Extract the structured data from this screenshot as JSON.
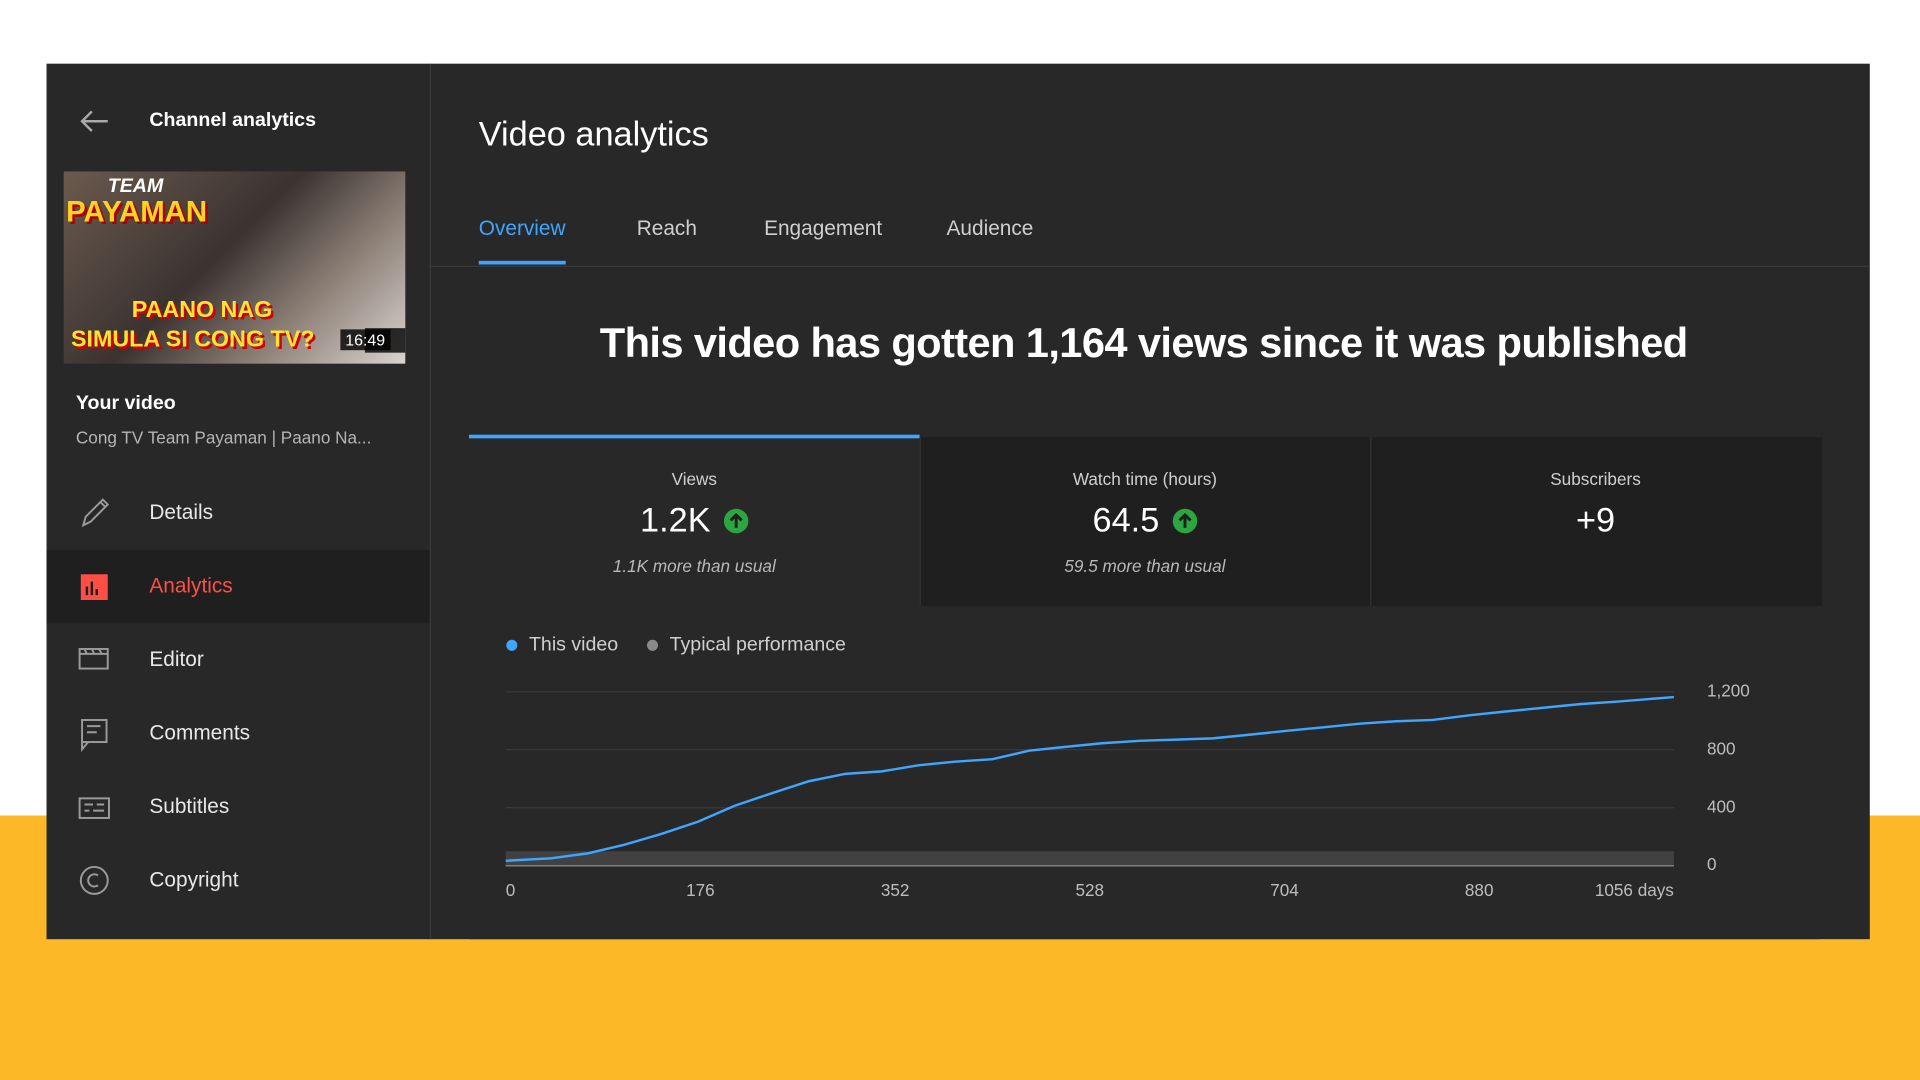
{
  "sidebar": {
    "back_label": "Channel analytics",
    "thumbnail": {
      "brand_top": "TEAM",
      "brand": "PAYAMAN",
      "line1": "PAANO NAG",
      "line2": "SIMULA SI CONG TV?",
      "duration": "16:49"
    },
    "your_video": "Your video",
    "video_title": "Cong TV Team Payaman | Paano Na...",
    "nav": [
      {
        "label": "Details",
        "active": false
      },
      {
        "label": "Analytics",
        "active": true
      },
      {
        "label": "Editor",
        "active": false
      },
      {
        "label": "Comments",
        "active": false
      },
      {
        "label": "Subtitles",
        "active": false
      },
      {
        "label": "Copyright",
        "active": false
      }
    ]
  },
  "header": {
    "title": "Video analytics",
    "tabs": [
      {
        "label": "Overview",
        "active": true
      },
      {
        "label": "Reach",
        "active": false
      },
      {
        "label": "Engagement",
        "active": false
      },
      {
        "label": "Audience",
        "active": false
      }
    ]
  },
  "headline": "This video has gotten 1,164 views since it was published",
  "cards": [
    {
      "label": "Views",
      "value": "1.2K",
      "note": "1.1K more than usual",
      "active": true,
      "trend_up": true
    },
    {
      "label": "Watch time (hours)",
      "value": "64.5",
      "note": "59.5 more than usual",
      "active": false,
      "trend_up": true
    },
    {
      "label": "Subscribers",
      "value": "+9",
      "active": false,
      "trend_up": false
    }
  ],
  "chart_data": {
    "type": "line",
    "x": [
      0,
      41,
      74,
      107,
      141,
      174,
      207,
      240,
      274,
      307,
      340,
      373,
      406,
      440,
      473,
      506,
      539,
      573,
      606,
      639,
      672,
      705,
      739,
      772,
      805,
      838,
      872,
      905,
      938,
      971,
      1004,
      1056
    ],
    "series": [
      {
        "name": "This video",
        "color": "#3ea6ff",
        "values": [
          34,
          51,
          85,
          144,
          220,
          304,
          414,
          499,
          583,
          634,
          651,
          693,
          718,
          735,
          794,
          820,
          845,
          862,
          870,
          879,
          904,
          930,
          955,
          980,
          997,
          1006,
          1039,
          1065,
          1090,
          1115,
          1132,
          1164
        ]
      },
      {
        "name": "Typical performance",
        "color": "#5f5f5f",
        "values": [
          100,
          100,
          100,
          100,
          100,
          100,
          100,
          100,
          100,
          100,
          100,
          100,
          100,
          100,
          100,
          100,
          100,
          100,
          100,
          100,
          100,
          100,
          100,
          100,
          100,
          100,
          100,
          100,
          100,
          100,
          100,
          100
        ]
      }
    ],
    "xlim": [
      0,
      1056
    ],
    "xticks": [
      0,
      176,
      352,
      528,
      704,
      880,
      {
        "value": 1056,
        "label": "1056 days"
      }
    ],
    "ylim": [
      0,
      1200
    ],
    "yticks": [
      0,
      400,
      800,
      {
        "value": 1200,
        "label": "1,200"
      }
    ],
    "grid": true
  }
}
